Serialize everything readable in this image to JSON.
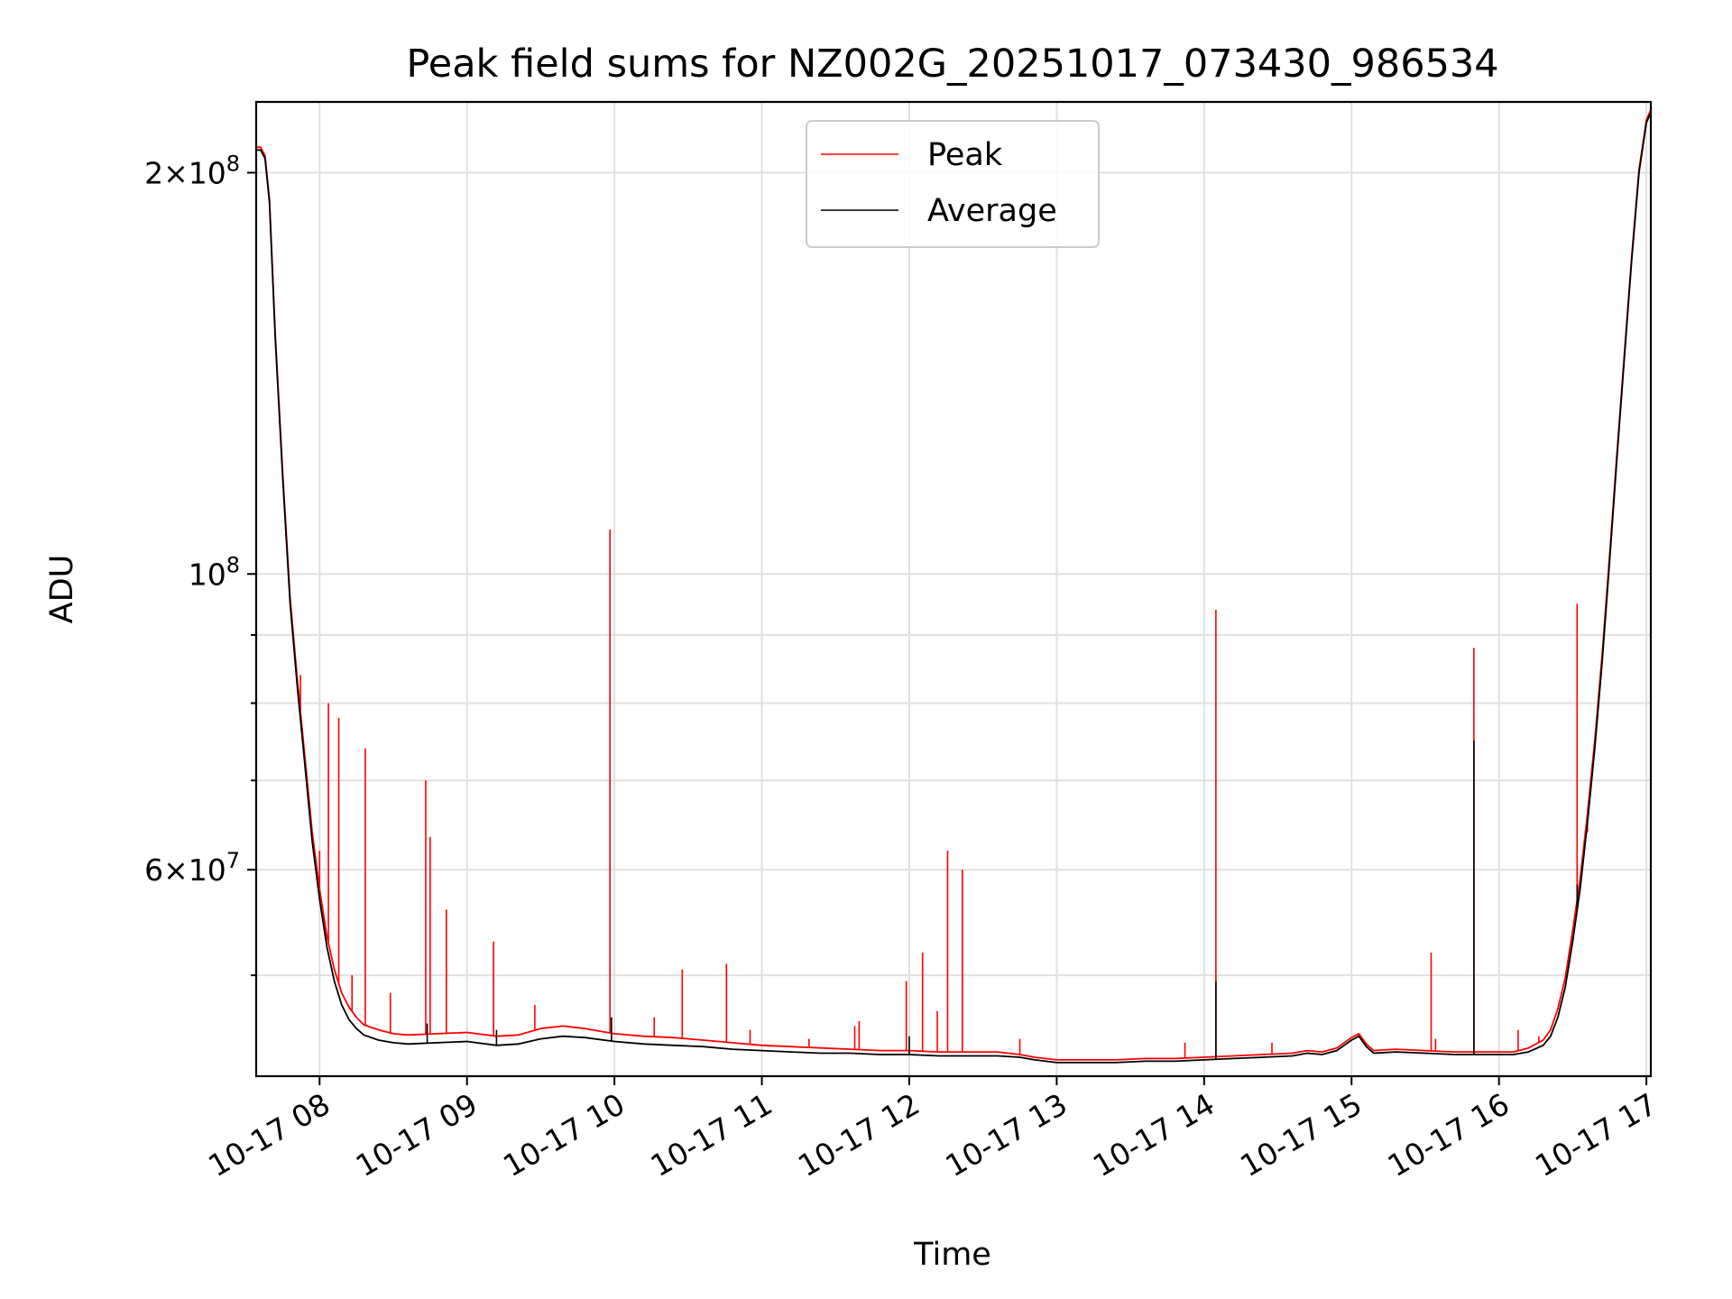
{
  "chart_data": {
    "type": "line",
    "title": "Peak field sums for NZ002G_20251017_073430_986534",
    "xlabel": "Time",
    "ylabel": "ADU",
    "yscale": "log",
    "xlim": [
      7.57,
      17.03
    ],
    "ylim": [
      42000000,
      226000000
    ],
    "x_ticks": [
      {
        "value": 8,
        "label": "10-17 08"
      },
      {
        "value": 9,
        "label": "10-17 09"
      },
      {
        "value": 10,
        "label": "10-17 10"
      },
      {
        "value": 11,
        "label": "10-17 11"
      },
      {
        "value": 12,
        "label": "10-17 12"
      },
      {
        "value": 13,
        "label": "10-17 13"
      },
      {
        "value": 14,
        "label": "10-17 14"
      },
      {
        "value": 15,
        "label": "10-17 15"
      },
      {
        "value": 16,
        "label": "10-17 16"
      },
      {
        "value": 17,
        "label": "10-17 17"
      }
    ],
    "y_major_ticks": [
      {
        "value": 200000000,
        "mantissa": "2",
        "exponent": "8"
      },
      {
        "value": 100000000,
        "mantissa": "",
        "exponent": "8"
      },
      {
        "value": 60000000,
        "mantissa": "6",
        "exponent": "7"
      }
    ],
    "y_minor_ticks": [
      50000000,
      70000000,
      80000000,
      90000000
    ],
    "legend": {
      "position": "top-center",
      "entries": [
        {
          "label": "Peak",
          "color": "#ff0000"
        },
        {
          "label": "Average",
          "color": "#000000"
        }
      ]
    },
    "series": [
      {
        "name": "Average",
        "color": "#000000",
        "points": [
          [
            7.57,
            208000000
          ],
          [
            7.6,
            208000000
          ],
          [
            7.63,
            205000000
          ],
          [
            7.66,
            190000000
          ],
          [
            7.7,
            150000000
          ],
          [
            7.75,
            118000000
          ],
          [
            7.8,
            95000000
          ],
          [
            7.85,
            82000000
          ],
          [
            7.9,
            72000000
          ],
          [
            7.95,
            63000000
          ],
          [
            8.0,
            57000000
          ],
          [
            8.05,
            52500000
          ],
          [
            8.1,
            49500000
          ],
          [
            8.15,
            47500000
          ],
          [
            8.2,
            46300000
          ],
          [
            8.25,
            45600000
          ],
          [
            8.3,
            45100000
          ],
          [
            8.4,
            44700000
          ],
          [
            8.5,
            44500000
          ],
          [
            8.6,
            44400000
          ],
          [
            8.8,
            44500000
          ],
          [
            9.0,
            44600000
          ],
          [
            9.2,
            44300000
          ],
          [
            9.35,
            44400000
          ],
          [
            9.5,
            44800000
          ],
          [
            9.65,
            45000000
          ],
          [
            9.8,
            44900000
          ],
          [
            10.0,
            44600000
          ],
          [
            10.2,
            44400000
          ],
          [
            10.4,
            44300000
          ],
          [
            10.6,
            44200000
          ],
          [
            10.8,
            44000000
          ],
          [
            11.0,
            43900000
          ],
          [
            11.2,
            43800000
          ],
          [
            11.4,
            43700000
          ],
          [
            11.6,
            43700000
          ],
          [
            11.8,
            43600000
          ],
          [
            12.0,
            43600000
          ],
          [
            12.2,
            43500000
          ],
          [
            12.4,
            43500000
          ],
          [
            12.6,
            43500000
          ],
          [
            12.75,
            43400000
          ],
          [
            12.85,
            43200000
          ],
          [
            13.0,
            43000000
          ],
          [
            13.2,
            43000000
          ],
          [
            13.4,
            43000000
          ],
          [
            13.6,
            43100000
          ],
          [
            13.8,
            43100000
          ],
          [
            14.0,
            43200000
          ],
          [
            14.2,
            43300000
          ],
          [
            14.4,
            43400000
          ],
          [
            14.6,
            43500000
          ],
          [
            14.7,
            43700000
          ],
          [
            14.8,
            43600000
          ],
          [
            14.9,
            43900000
          ],
          [
            15.0,
            44700000
          ],
          [
            15.05,
            45000000
          ],
          [
            15.1,
            44200000
          ],
          [
            15.15,
            43700000
          ],
          [
            15.3,
            43800000
          ],
          [
            15.5,
            43700000
          ],
          [
            15.7,
            43600000
          ],
          [
            15.9,
            43600000
          ],
          [
            16.1,
            43600000
          ],
          [
            16.2,
            43800000
          ],
          [
            16.3,
            44300000
          ],
          [
            16.35,
            45000000
          ],
          [
            16.4,
            46500000
          ],
          [
            16.45,
            49000000
          ],
          [
            16.5,
            53000000
          ],
          [
            16.55,
            58000000
          ],
          [
            16.6,
            65000000
          ],
          [
            16.65,
            74000000
          ],
          [
            16.7,
            86000000
          ],
          [
            16.75,
            102000000
          ],
          [
            16.8,
            122000000
          ],
          [
            16.85,
            145000000
          ],
          [
            16.9,
            172000000
          ],
          [
            16.95,
            200000000
          ],
          [
            17.0,
            218000000
          ],
          [
            17.03,
            222000000
          ]
        ],
        "spikes": [
          [
            8.73,
            46000000
          ],
          [
            9.2,
            45500000
          ],
          [
            9.98,
            46500000
          ],
          [
            12.0,
            45000000
          ],
          [
            14.08,
            49500000
          ],
          [
            15.83,
            75000000
          ],
          [
            16.53,
            58500000
          ]
        ]
      },
      {
        "name": "Peak",
        "color": "#ff0000",
        "points": [
          [
            7.57,
            209000000
          ],
          [
            7.6,
            209000000
          ],
          [
            7.63,
            206000000
          ],
          [
            7.66,
            191000000
          ],
          [
            7.7,
            151000000
          ],
          [
            7.75,
            119000000
          ],
          [
            7.8,
            96000000
          ],
          [
            7.85,
            83000000
          ],
          [
            7.9,
            73000000
          ],
          [
            7.95,
            64000000
          ],
          [
            8.0,
            58000000
          ],
          [
            8.05,
            53500000
          ],
          [
            8.1,
            50500000
          ],
          [
            8.15,
            48500000
          ],
          [
            8.2,
            47300000
          ],
          [
            8.25,
            46500000
          ],
          [
            8.3,
            45900000
          ],
          [
            8.4,
            45500000
          ],
          [
            8.5,
            45200000
          ],
          [
            8.6,
            45100000
          ],
          [
            8.8,
            45200000
          ],
          [
            9.0,
            45300000
          ],
          [
            9.2,
            45000000
          ],
          [
            9.35,
            45100000
          ],
          [
            9.5,
            45600000
          ],
          [
            9.65,
            45800000
          ],
          [
            9.8,
            45600000
          ],
          [
            10.0,
            45200000
          ],
          [
            10.2,
            45000000
          ],
          [
            10.4,
            44900000
          ],
          [
            10.6,
            44700000
          ],
          [
            10.8,
            44500000
          ],
          [
            11.0,
            44300000
          ],
          [
            11.2,
            44200000
          ],
          [
            11.4,
            44100000
          ],
          [
            11.6,
            44000000
          ],
          [
            11.8,
            43900000
          ],
          [
            12.0,
            43900000
          ],
          [
            12.2,
            43800000
          ],
          [
            12.4,
            43800000
          ],
          [
            12.6,
            43800000
          ],
          [
            12.75,
            43600000
          ],
          [
            12.85,
            43400000
          ],
          [
            13.0,
            43200000
          ],
          [
            13.2,
            43200000
          ],
          [
            13.4,
            43200000
          ],
          [
            13.6,
            43300000
          ],
          [
            13.8,
            43300000
          ],
          [
            14.0,
            43400000
          ],
          [
            14.2,
            43500000
          ],
          [
            14.4,
            43600000
          ],
          [
            14.6,
            43700000
          ],
          [
            14.7,
            43900000
          ],
          [
            14.8,
            43800000
          ],
          [
            14.9,
            44100000
          ],
          [
            15.0,
            44900000
          ],
          [
            15.05,
            45200000
          ],
          [
            15.1,
            44400000
          ],
          [
            15.15,
            43900000
          ],
          [
            15.3,
            44000000
          ],
          [
            15.5,
            43900000
          ],
          [
            15.7,
            43800000
          ],
          [
            15.9,
            43800000
          ],
          [
            16.1,
            43800000
          ],
          [
            16.2,
            44100000
          ],
          [
            16.3,
            44700000
          ],
          [
            16.35,
            45500000
          ],
          [
            16.4,
            47200000
          ],
          [
            16.45,
            49800000
          ],
          [
            16.5,
            54000000
          ],
          [
            16.55,
            59000000
          ],
          [
            16.6,
            66000000
          ],
          [
            16.65,
            75000000
          ],
          [
            16.7,
            87000000
          ],
          [
            16.75,
            103000000
          ],
          [
            16.8,
            123000000
          ],
          [
            16.85,
            146000000
          ],
          [
            16.9,
            173000000
          ],
          [
            16.95,
            201000000
          ],
          [
            17.0,
            219000000
          ],
          [
            17.03,
            223000000
          ]
        ],
        "spikes": [
          [
            7.87,
            84000000
          ],
          [
            8.0,
            62000000
          ],
          [
            8.06,
            80000000
          ],
          [
            8.13,
            78000000
          ],
          [
            8.22,
            50000000
          ],
          [
            8.31,
            74000000
          ],
          [
            8.48,
            48500000
          ],
          [
            8.72,
            70000000
          ],
          [
            8.75,
            63500000
          ],
          [
            8.86,
            56000000
          ],
          [
            9.18,
            53000000
          ],
          [
            9.46,
            47500000
          ],
          [
            9.97,
            108000000
          ],
          [
            10.27,
            46500000
          ],
          [
            10.46,
            50500000
          ],
          [
            10.76,
            51000000
          ],
          [
            10.92,
            45500000
          ],
          [
            11.32,
            44800000
          ],
          [
            11.63,
            45800000
          ],
          [
            11.66,
            46200000
          ],
          [
            11.98,
            49500000
          ],
          [
            12.09,
            52000000
          ],
          [
            12.19,
            47000000
          ],
          [
            12.26,
            62000000
          ],
          [
            12.36,
            60000000
          ],
          [
            12.75,
            44800000
          ],
          [
            13.87,
            44500000
          ],
          [
            14.08,
            94000000
          ],
          [
            14.46,
            44500000
          ],
          [
            15.54,
            52000000
          ],
          [
            15.57,
            44800000
          ],
          [
            15.83,
            88000000
          ],
          [
            16.13,
            45500000
          ],
          [
            16.27,
            45000000
          ],
          [
            16.53,
            95000000
          ],
          [
            16.6,
            64000000
          ]
        ]
      }
    ]
  }
}
